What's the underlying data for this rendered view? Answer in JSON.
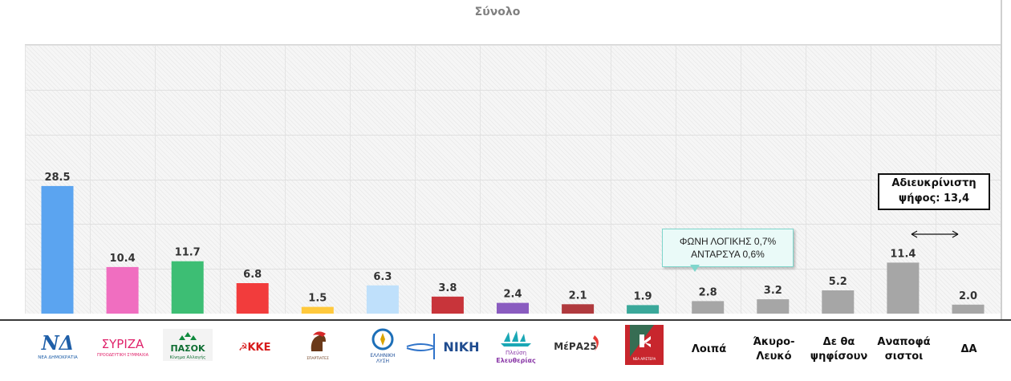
{
  "chart_data": {
    "type": "bar",
    "title": "Σύνολο",
    "xlabel": "",
    "ylabel": "",
    "ylim": [
      0,
      60
    ],
    "grid": true,
    "legend": "none",
    "categories": [
      "ΝΔ",
      "ΣΥΡΙΖΑ",
      "ΠΑΣΟΚ",
      "ΚΚΕ",
      "Σπαρτιάτες",
      "Ελληνική Λύση",
      "ΝΙΚΗ",
      "Πλεύση Ελευθερίας",
      "ΜέΡΑ25",
      "Νέα Αριστερά",
      "Λοιπά",
      "Άκυρο-\nΛευκό",
      "Δε θα\nψηφίσουν",
      "Αναποφά\nσιστοι",
      "ΔΑ"
    ],
    "values": [
      28.5,
      10.4,
      11.7,
      6.8,
      1.5,
      6.3,
      3.8,
      2.4,
      2.1,
      1.9,
      2.8,
      3.2,
      5.2,
      11.4,
      2.0
    ],
    "value_labels": [
      "28.5",
      "10.4",
      "11.7",
      "6.8",
      "1.5",
      "6.3",
      "3.8",
      "2.4",
      "2.1",
      "1.9",
      "2.8",
      "3.2",
      "5.2",
      "11.4",
      "2.0"
    ],
    "colors": [
      "#5ba4f0",
      "#f06ec0",
      "#3dbe74",
      "#f23c3c",
      "#ffc93c",
      "#bfe0fb",
      "#c8343a",
      "#8a5cc0",
      "#b03a3e",
      "#3aa89a",
      "#a6a6a6",
      "#a6a6a6",
      "#a6a6a6",
      "#a6a6a6",
      "#a6a6a6"
    ],
    "annotations": {
      "others_breakdown": [
        "ΦΩΝΗ ΛΟΓΙΚΗΣ 0,7%",
        "ΑΝΤΑΡΣΥΑ 0,6%"
      ],
      "undecided_line1": "Αδιευκρίνιστη",
      "undecided_line2": "ψήφος: 13,4"
    }
  },
  "logos": {
    "nd": "ΝΔ",
    "nd_sub": "ΝΕΑ ΔΗΜΟΚΡΑΤΙΑ",
    "syriza": "ΣΥΡΙΖΑ",
    "syriza_sub": "ΠΡΟΟΔΕΥΤΙΚΗ ΣΥΜΜΑΧΙΑ",
    "pasok": "ΠΑΣΟΚ",
    "pasok_sub": "Κίνημα Αλλαγής",
    "kke": "ΚΚΕ",
    "spartiates": "ΣΠΑΡΤΙΑΤΕΣ",
    "elliniki_lysi_1": "ΕΛΛΗΝΙΚΗ",
    "elliniki_lysi_2": "ΛΥΣΗ",
    "niki": "ΝΙΚΗ",
    "plefsi_1": "Πλεύση",
    "plefsi_2": "Ελευθερίας",
    "mera25": "ΜέΡΑ25",
    "nea_aristera": "ΝΕΑ ΑΡΙΣΤΕΡΑ"
  },
  "palette": {
    "background": "#ffffff",
    "plot_bg": "#f6f6f6",
    "label_text": "#111111",
    "title_text": "#808080"
  }
}
